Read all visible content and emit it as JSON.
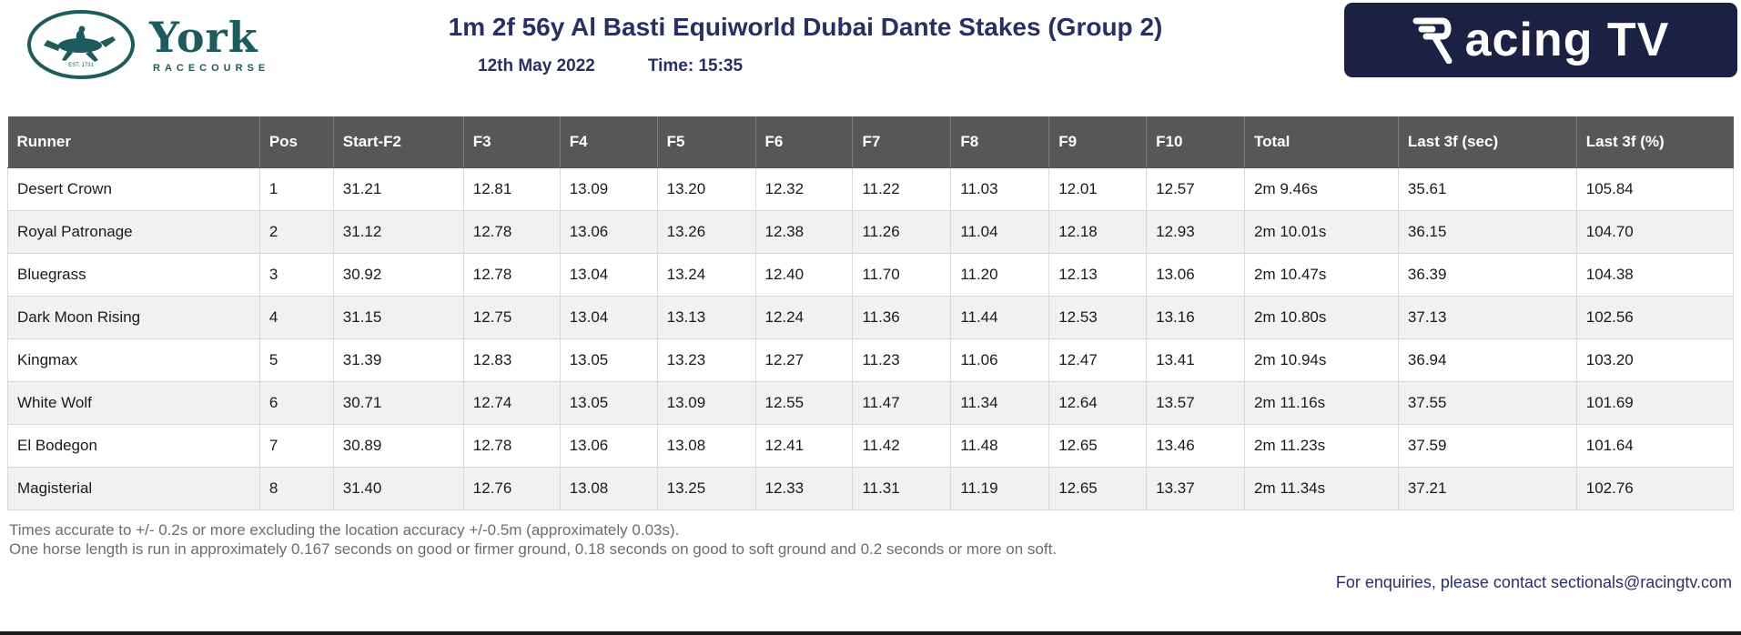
{
  "header": {
    "race_title": "1m 2f 56y Al Basti Equiworld Dubai Dante Stakes (Group 2)",
    "race_date": "12th May 2022",
    "race_time": "Time: 15:35",
    "york_logo": {
      "name": "York",
      "subtitle": "RACECOURSE",
      "established": "EST. 1731"
    },
    "racingtv_logo": {
      "label": "acing TV"
    }
  },
  "table": {
    "columns": [
      "Runner",
      "Pos",
      "Start-F2",
      "F3",
      "F4",
      "F5",
      "F6",
      "F7",
      "F8",
      "F9",
      "F10",
      "Total",
      "Last 3f (sec)",
      "Last 3f (%)"
    ],
    "rows": [
      [
        "Desert Crown",
        "1",
        "31.21",
        "12.81",
        "13.09",
        "13.20",
        "12.32",
        "11.22",
        "11.03",
        "12.01",
        "12.57",
        "2m 9.46s",
        "35.61",
        "105.84"
      ],
      [
        "Royal Patronage",
        "2",
        "31.12",
        "12.78",
        "13.06",
        "13.26",
        "12.38",
        "11.26",
        "11.04",
        "12.18",
        "12.93",
        "2m 10.01s",
        "36.15",
        "104.70"
      ],
      [
        "Bluegrass",
        "3",
        "30.92",
        "12.78",
        "13.04",
        "13.24",
        "12.40",
        "11.70",
        "11.20",
        "12.13",
        "13.06",
        "2m 10.47s",
        "36.39",
        "104.38"
      ],
      [
        "Dark Moon Rising",
        "4",
        "31.15",
        "12.75",
        "13.04",
        "13.13",
        "12.24",
        "11.36",
        "11.44",
        "12.53",
        "13.16",
        "2m 10.80s",
        "37.13",
        "102.56"
      ],
      [
        "Kingmax",
        "5",
        "31.39",
        "12.83",
        "13.05",
        "13.23",
        "12.27",
        "11.23",
        "11.06",
        "12.47",
        "13.41",
        "2m 10.94s",
        "36.94",
        "103.20"
      ],
      [
        "White Wolf",
        "6",
        "30.71",
        "12.74",
        "13.05",
        "13.09",
        "12.55",
        "11.47",
        "11.34",
        "12.64",
        "13.57",
        "2m 11.16s",
        "37.55",
        "101.69"
      ],
      [
        "El Bodegon",
        "7",
        "30.89",
        "12.78",
        "13.06",
        "13.08",
        "12.41",
        "11.42",
        "11.48",
        "12.65",
        "13.46",
        "2m 11.23s",
        "37.59",
        "101.64"
      ],
      [
        "Magisterial",
        "8",
        "31.40",
        "12.76",
        "13.08",
        "13.25",
        "12.33",
        "11.31",
        "11.19",
        "12.65",
        "13.37",
        "2m 11.34s",
        "37.21",
        "102.76"
      ]
    ]
  },
  "footnotes": {
    "line1": "Times accurate to +/- 0.2s or more excluding the location accuracy +/-0.5m (approximately 0.03s).",
    "line2": "One horse length is run in approximately 0.167 seconds on good or firmer ground, 0.18 seconds on good to soft ground and 0.2 seconds or more on soft."
  },
  "contact": {
    "prefix": "For enquiries, please contact ",
    "email": "sectionals@racingtv.com"
  },
  "colors": {
    "title_navy": "#272f63",
    "racingtv_navy": "#1b2142",
    "york_teal": "#1e5b5d",
    "table_header_gray": "#57575a",
    "row_alt_gray": "#f1f1f2",
    "border_gray": "#d9d9da",
    "footnote_gray": "#6d6d6d"
  }
}
